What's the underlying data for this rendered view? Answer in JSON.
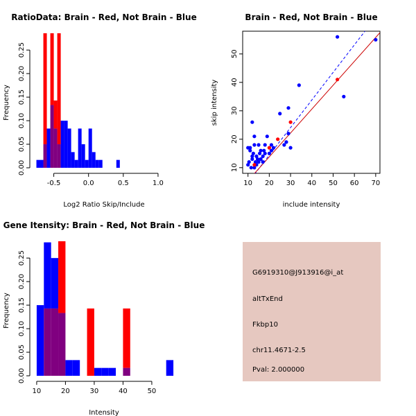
{
  "chart_data": [
    {
      "id": "ratio_hist",
      "type": "histogram",
      "title": "RatioData: Brain - Red, Not Brain - Blue",
      "xlabel": "Log2 Ratio Skip/Include",
      "ylabel": "Frequency",
      "xlim": [
        -0.775,
        1.2
      ],
      "ylim": [
        0,
        0.29
      ],
      "xticks": [
        -0.5,
        0.0,
        0.5,
        1.0
      ],
      "xtick_labels": [
        "-0.5",
        "0.0",
        "0.5",
        "1.0"
      ],
      "yticks": [
        0.0,
        0.05,
        0.1,
        0.15,
        0.2,
        0.25
      ],
      "ytick_labels": [
        "0.00",
        "0.05",
        "0.10",
        "0.15",
        "0.20",
        "0.25"
      ],
      "series": [
        {
          "name": "Not Brain",
          "color": "#0000ff",
          "bin_start": -0.75,
          "bin_width": 0.05,
          "values": [
            0.0167,
            0.0167,
            0.05,
            0.0833,
            0.1333,
            0.0833,
            0.05,
            0.1,
            0.1,
            0.0833,
            0.0333,
            0.0167,
            0.0833,
            0.05,
            0.0167,
            0.0833,
            0.0333,
            0.0167,
            0.0167,
            0.0,
            0.0,
            0.0,
            0.0,
            0.0167
          ]
        },
        {
          "name": "Brain",
          "color": "#ff0000",
          "bin_start": -0.75,
          "bin_width": 0.05,
          "values": [
            0.0,
            0.0,
            0.2857,
            0.0,
            0.2857,
            0.1429,
            0.2857,
            0.0,
            0.0,
            0.0,
            0.0,
            0.0,
            0.0,
            0.0,
            0.0,
            0.0,
            0.0,
            0.0,
            0.0,
            0.0,
            0.0,
            0.0,
            0.0,
            0.0
          ]
        }
      ],
      "overlap_color": "#800080"
    },
    {
      "id": "intensity_scatter",
      "type": "scatter",
      "title": "Brain - Red, Not Brain - Blue",
      "xlabel": "include intensity",
      "ylabel": "skip intensity",
      "xlim": [
        7.5,
        72
      ],
      "ylim": [
        8,
        58
      ],
      "xticks": [
        10,
        20,
        30,
        40,
        50,
        60,
        70
      ],
      "xtick_labels": [
        "10",
        "20",
        "30",
        "40",
        "50",
        "60",
        "70"
      ],
      "yticks": [
        10,
        20,
        30,
        40,
        50
      ],
      "ytick_labels": [
        "10",
        "20",
        "30",
        "40",
        "50"
      ],
      "series": [
        {
          "name": "Not Brain",
          "color": "#0000ff",
          "x": [
            10,
            10.5,
            11,
            11.5,
            12,
            12,
            12.5,
            13,
            13,
            13.5,
            14,
            14,
            14.5,
            15,
            15,
            15.5,
            16,
            16,
            17,
            17,
            17.5,
            18,
            19,
            20,
            21,
            22,
            12,
            13,
            25,
            27,
            28,
            29,
            29,
            30,
            34,
            52,
            55,
            70,
            10,
            11,
            16,
            18,
            21
          ],
          "y": [
            17,
            12,
            16,
            10,
            13,
            14,
            15,
            10,
            18,
            12,
            11,
            14,
            13,
            12,
            18,
            15,
            13,
            16,
            14,
            12,
            16,
            15,
            21,
            15,
            18,
            17,
            26,
            21,
            29,
            18,
            19,
            22,
            31,
            17,
            39,
            56,
            35,
            55,
            11,
            17,
            13,
            18,
            16
          ]
        },
        {
          "name": "Brain",
          "color": "#ff0000",
          "x": [
            13,
            20,
            24,
            30,
            52
          ],
          "y": [
            11,
            17,
            20,
            26,
            41
          ]
        }
      ],
      "fit_lines": [
        {
          "name": "Not Brain fit",
          "color": "#0000ff",
          "style": "dashed",
          "intercept": -5.0,
          "slope": 0.97
        },
        {
          "name": "Brain fit",
          "color": "#cc0000",
          "style": "solid",
          "intercept": -3.0,
          "slope": 0.84
        }
      ]
    },
    {
      "id": "gene_hist",
      "type": "histogram",
      "title": "Gene Itensity: Brain - Red, Not Brain - Blue",
      "xlabel": "Intensity",
      "ylabel": "Frequency",
      "xlim": [
        9.3,
        57
      ],
      "ylim": [
        0,
        0.29
      ],
      "xticks": [
        10,
        20,
        30,
        40,
        50
      ],
      "xtick_labels": [
        "10",
        "20",
        "30",
        "40",
        "50"
      ],
      "yticks": [
        0.0,
        0.05,
        0.1,
        0.15,
        0.2,
        0.25
      ],
      "ytick_labels": [
        "0.00",
        "0.05",
        "0.10",
        "0.15",
        "0.20",
        "0.25"
      ],
      "series": [
        {
          "name": "Not Brain",
          "color": "#0000ff",
          "bin_start": 10,
          "bin_width": 2.5,
          "values": [
            0.15,
            0.2833,
            0.25,
            0.1333,
            0.0333,
            0.0333,
            0.0,
            0.0,
            0.0167,
            0.0167,
            0.0167,
            0.0,
            0.0167,
            0.0,
            0.0,
            0.0,
            0.0,
            0.0,
            0.0333
          ]
        },
        {
          "name": "Brain",
          "color": "#ff0000",
          "bin_start": 10,
          "bin_width": 2.5,
          "values": [
            0.0,
            0.1429,
            0.1429,
            0.2857,
            0.0,
            0.0,
            0.0,
            0.1429,
            0.0,
            0.0,
            0.0,
            0.0,
            0.1429,
            0.0,
            0.0,
            0.0,
            0.0,
            0.0,
            0.0
          ]
        }
      ],
      "overlap_color": "#800080"
    }
  ],
  "info_panel": {
    "probe_id": "G6919310@J913916@i_at",
    "event_type": "altTxEnd",
    "gene_name": "Fkbp10",
    "location": "chr11.4671-2.5",
    "pval": "Pval: 2.000000",
    "background_color": "#e6c8c0",
    "pval_color": "#b00000"
  }
}
